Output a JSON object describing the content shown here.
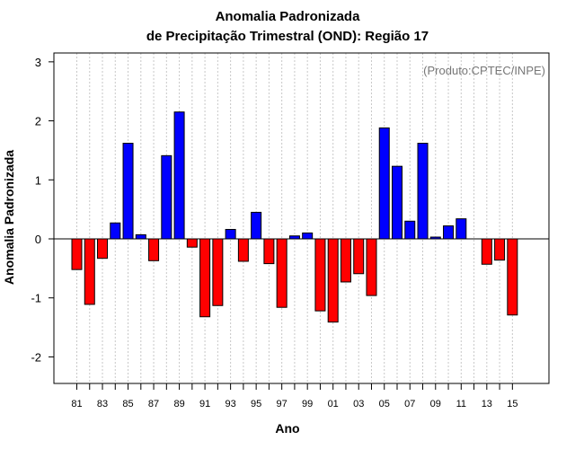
{
  "chart_data": {
    "type": "bar",
    "title": "Anomalia Padronizada",
    "subtitle": "de Precipitação Trimestral (OND): Região 17",
    "credit": "(Produto:CPTEC/INPE)",
    "xlabel": "Ano",
    "ylabel": "Anomalia Padronizada",
    "ylim": [
      -2.45,
      3.15
    ],
    "yticks": [
      -2,
      -1,
      0,
      1,
      2,
      3
    ],
    "xtick_labels": [
      "81",
      "83",
      "85",
      "87",
      "89",
      "91",
      "93",
      "95",
      "97",
      "99",
      "01",
      "03",
      "05",
      "07",
      "09",
      "11",
      "13",
      "15"
    ],
    "categories": [
      "1981",
      "1982",
      "1983",
      "1984",
      "1985",
      "1986",
      "1987",
      "1988",
      "1989",
      "1990",
      "1991",
      "1992",
      "1993",
      "1994",
      "1995",
      "1996",
      "1997",
      "1998",
      "1999",
      "2000",
      "2001",
      "2002",
      "2003",
      "2004",
      "2005",
      "2006",
      "2007",
      "2008",
      "2009",
      "2010",
      "2011",
      "2012",
      "2013",
      "2014",
      "2015"
    ],
    "values": [
      -0.52,
      -1.11,
      -0.33,
      0.27,
      1.62,
      0.07,
      -0.37,
      1.41,
      2.15,
      -0.14,
      -1.32,
      -1.13,
      0.16,
      -0.38,
      0.45,
      -0.42,
      -1.16,
      0.05,
      0.1,
      -1.22,
      -1.41,
      -0.73,
      -0.59,
      -0.96,
      1.88,
      1.23,
      0.3,
      1.62,
      0.03,
      0.22,
      0.34,
      null,
      -0.43,
      -0.36,
      -1.29
    ],
    "colors": {
      "positive": "#0000ff",
      "negative": "#ff0000",
      "grid": "#c8c8c8"
    }
  }
}
